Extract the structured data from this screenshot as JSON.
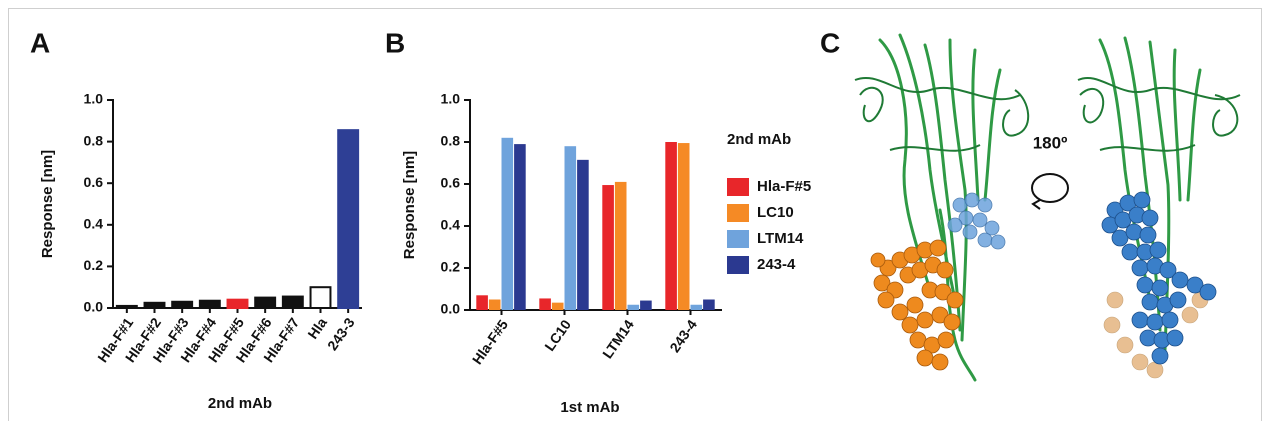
{
  "chart_data": [
    {
      "type": "bar",
      "panel": "A",
      "categories": [
        "Hla-F#1",
        "Hla-F#2",
        "Hla-F#3",
        "Hla-F#4",
        "Hla-F#5",
        "Hla-F#6",
        "Hla-F#7",
        "Hla",
        "243-3"
      ],
      "values": [
        0.01,
        0.025,
        0.03,
        0.035,
        0.04,
        0.05,
        0.055,
        0.1,
        0.855
      ],
      "colors": [
        "#111111",
        "#111111",
        "#111111",
        "#111111",
        "#e8262a",
        "#111111",
        "#111111",
        "#ffffff",
        "#2e3f95"
      ],
      "edgecolors": [
        "#111111",
        "#111111",
        "#111111",
        "#111111",
        "#e8262a",
        "#111111",
        "#111111",
        "#111111",
        "#2e3f95"
      ],
      "ylabel": "Response [nm]",
      "xlabel": "2nd mAb",
      "ylim": [
        0,
        1.0
      ],
      "yticks": [
        {
          "value": 0,
          "label": "0.0"
        },
        {
          "value": 0.2,
          "label": "0.2"
        },
        {
          "value": 0.4,
          "label": "0.4"
        },
        {
          "value": 0.6,
          "label": "0.6"
        },
        {
          "value": 0.8,
          "label": "0.8"
        },
        {
          "value": 1.0,
          "label": "1.0"
        }
      ]
    },
    {
      "type": "bar",
      "panel": "B",
      "categories": [
        "Hla-F#5",
        "LC10",
        "LTM14",
        "243-4"
      ],
      "series": [
        {
          "name": "Hla-F#5",
          "color": "#e8262a",
          "values": [
            0.07,
            0.055,
            0.595,
            0.8
          ]
        },
        {
          "name": "LC10",
          "color": "#f58a25",
          "values": [
            0.05,
            0.035,
            0.61,
            0.795
          ]
        },
        {
          "name": "LTM14",
          "color": "#6fa3dc",
          "values": [
            0.82,
            0.78,
            0.025,
            0.025
          ]
        },
        {
          "name": "243-4",
          "color": "#2b3990",
          "values": [
            0.79,
            0.715,
            0.045,
            0.05
          ]
        }
      ],
      "legend_title": "2nd mAb",
      "ylabel": "Response [nm]",
      "xlabel": "1st mAb",
      "ylim": [
        0,
        1.0
      ],
      "yticks": [
        {
          "value": 0,
          "label": "0.0"
        },
        {
          "value": 0.2,
          "label": "0.2"
        },
        {
          "value": 0.4,
          "label": "0.4"
        },
        {
          "value": 0.6,
          "label": "0.6"
        },
        {
          "value": 0.8,
          "label": "0.8"
        },
        {
          "value": 1.0,
          "label": "1.0"
        }
      ]
    }
  ],
  "panel_c": {
    "panel": "C",
    "rotation_label": "180º"
  }
}
